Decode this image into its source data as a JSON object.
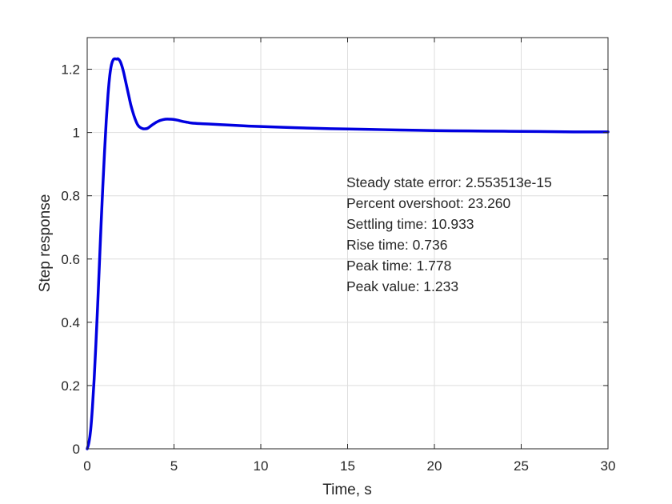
{
  "chart_data": {
    "type": "line",
    "title": "",
    "xlabel": "Time, s",
    "ylabel": "Step response",
    "xlim": [
      0,
      30
    ],
    "ylim": [
      0,
      1.3
    ],
    "xticks": [
      0,
      5,
      10,
      15,
      20,
      25,
      30
    ],
    "xtick_labels": [
      "0",
      "5",
      "10",
      "15",
      "20",
      "25",
      "30"
    ],
    "yticks": [
      0,
      0.2,
      0.4,
      0.6,
      0.8,
      1.0,
      1.2
    ],
    "ytick_labels": [
      "0",
      "0.2",
      "0.4",
      "0.6",
      "0.8",
      "1",
      "1.2"
    ],
    "grid": true,
    "series": [
      {
        "color": "#0000e0",
        "x": [
          0,
          0.1,
          0.2,
          0.3,
          0.4,
          0.5,
          0.6,
          0.7,
          0.8,
          0.9,
          1.0,
          1.1,
          1.2,
          1.3,
          1.4,
          1.5,
          1.6,
          1.7,
          1.778,
          1.9,
          2.0,
          2.1,
          2.2,
          2.3,
          2.4,
          2.5,
          2.6,
          2.7,
          2.8,
          2.9,
          3.0,
          3.2,
          3.4,
          3.5,
          3.6,
          3.8,
          4.0,
          4.2,
          4.5,
          4.8,
          5.0,
          5.2,
          5.5,
          5.8,
          6.0,
          6.5,
          7.0,
          8.0,
          9.0,
          10.0,
          12.0,
          14.0,
          16.0,
          18.0,
          20.0,
          22.0,
          24.0,
          26.0,
          28.0,
          30.0
        ],
        "y": [
          0,
          0.02,
          0.06,
          0.13,
          0.22,
          0.33,
          0.45,
          0.58,
          0.71,
          0.83,
          0.94,
          1.04,
          1.12,
          1.18,
          1.215,
          1.23,
          1.233,
          1.232,
          1.233,
          1.225,
          1.21,
          1.19,
          1.165,
          1.14,
          1.115,
          1.09,
          1.07,
          1.052,
          1.037,
          1.025,
          1.018,
          1.012,
          1.012,
          1.014,
          1.018,
          1.026,
          1.033,
          1.038,
          1.042,
          1.042,
          1.041,
          1.039,
          1.035,
          1.032,
          1.03,
          1.028,
          1.027,
          1.024,
          1.021,
          1.019,
          1.015,
          1.012,
          1.01,
          1.008,
          1.006,
          1.005,
          1.004,
          1.003,
          1.002,
          1.002
        ]
      }
    ],
    "annotations": [
      "Steady state error: 2.553513e-15",
      "Percent overshoot: 23.260",
      "Settling time: 10.933",
      "Rise time: 0.736",
      "Peak time: 1.778",
      "Peak value: 1.233"
    ]
  }
}
